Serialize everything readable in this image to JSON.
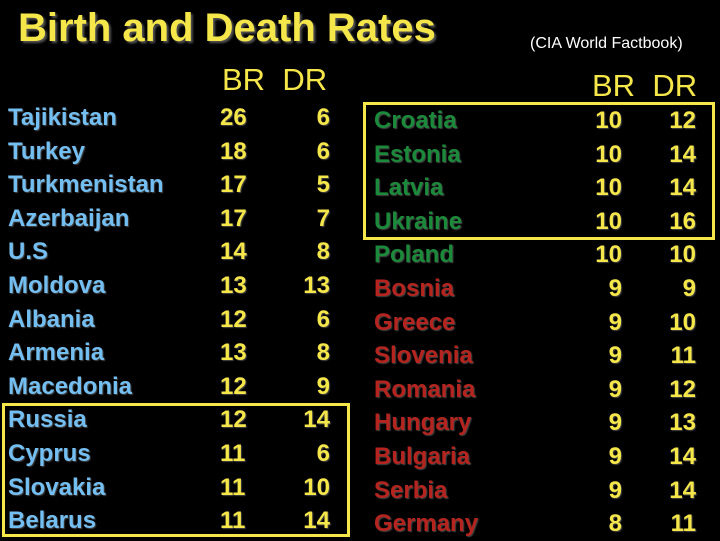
{
  "title": "Birth and Death Rates",
  "subtitle": "(CIA World Factbook)",
  "left_header": {
    "br": "BR",
    "dr": "DR"
  },
  "right_header": {
    "br": "BR",
    "dr": "DR"
  },
  "left_rows": [
    {
      "country": "Tajikistan",
      "br": "26",
      "dr": "6"
    },
    {
      "country": "Turkey",
      "br": "18",
      "dr": "6"
    },
    {
      "country": "Turkmenistan",
      "br": "17",
      "dr": "5"
    },
    {
      "country": "Azerbaijan",
      "br": "17",
      "dr": "7"
    },
    {
      "country": "U.S",
      "br": "14",
      "dr": "8"
    },
    {
      "country": "Moldova",
      "br": "13",
      "dr": "13"
    },
    {
      "country": "Albania",
      "br": "12",
      "dr": "6"
    },
    {
      "country": "Armenia",
      "br": "13",
      "dr": "8"
    },
    {
      "country": "Macedonia",
      "br": "12",
      "dr": "9"
    },
    {
      "country": "Russia",
      "br": "12",
      "dr": "14"
    },
    {
      "country": "Cyprus",
      "br": "11",
      "dr": "6"
    },
    {
      "country": "Slovakia",
      "br": "11",
      "dr": "10"
    },
    {
      "country": "Belarus",
      "br": "11",
      "dr": "14"
    }
  ],
  "right_rows": [
    {
      "country": "Croatia",
      "br": "10",
      "dr": "12"
    },
    {
      "country": "Estonia",
      "br": "10",
      "dr": "14"
    },
    {
      "country": "Latvia",
      "br": "10",
      "dr": "14"
    },
    {
      "country": "Ukraine",
      "br": "10",
      "dr": "16"
    },
    {
      "country": "Poland",
      "br": "10",
      "dr": "10"
    },
    {
      "country": "Bosnia",
      "br": "9",
      "dr": "9"
    },
    {
      "country": "Greece",
      "br": "9",
      "dr": "10"
    },
    {
      "country": "Slovenia",
      "br": "9",
      "dr": "11"
    },
    {
      "country": "Romania",
      "br": "9",
      "dr": "12"
    },
    {
      "country": "Hungary",
      "br": "9",
      "dr": "13"
    },
    {
      "country": "Bulgaria",
      "br": "9",
      "dr": "14"
    },
    {
      "country": "Serbia",
      "br": "9",
      "dr": "14"
    },
    {
      "country": "Germany",
      "br": "8",
      "dr": "11"
    }
  ],
  "colors": {
    "title": "#f5e64a",
    "left_country": "#74bff2",
    "right_green": "#1b8a3a",
    "right_red": "#b5241e",
    "highlight_box": "#f5e64a"
  }
}
